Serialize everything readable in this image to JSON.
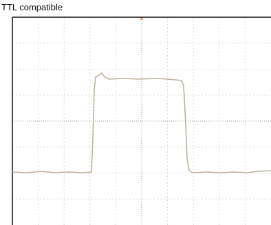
{
  "title": "TTL compatible"
}
